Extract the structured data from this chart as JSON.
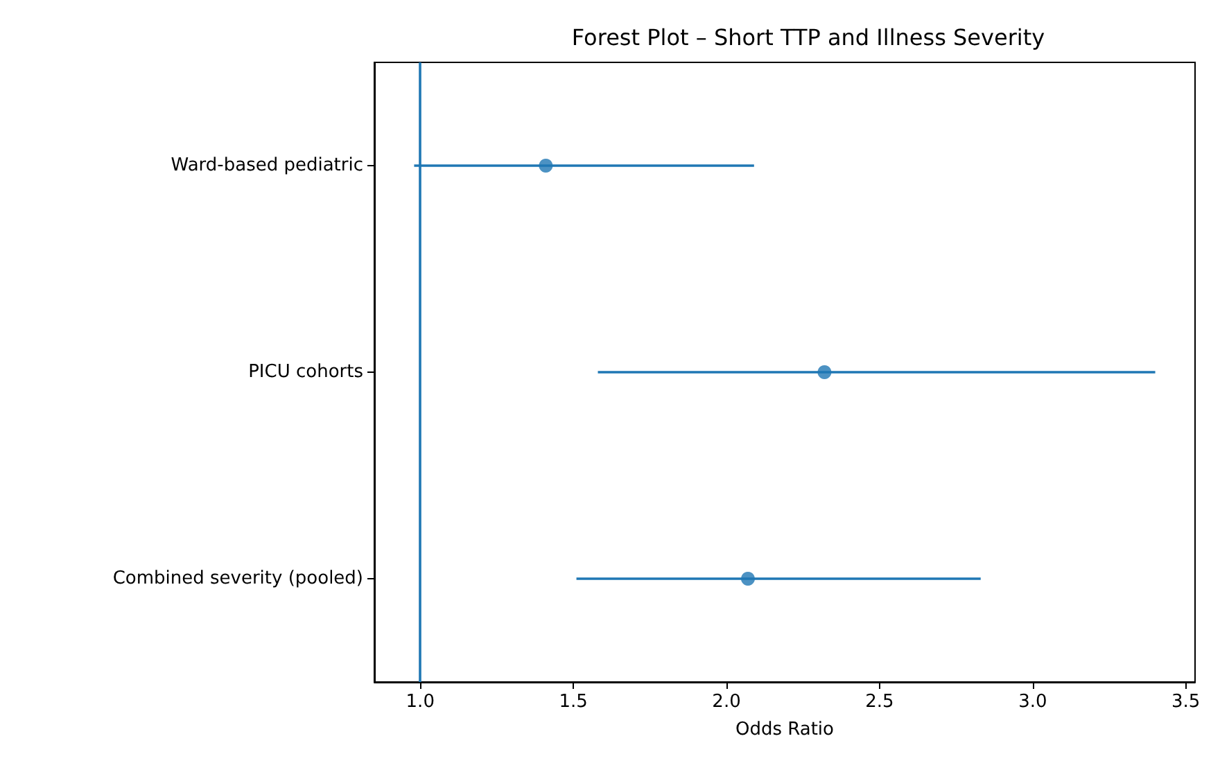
{
  "chart_data": {
    "type": "scatter",
    "title": "Forest Plot – Short TTP and Illness Severity",
    "xlabel": "Odds Ratio",
    "categories": [
      "Ward-based pediatric",
      "PICU cohorts",
      "Combined severity (pooled)"
    ],
    "orientation": "horizontal",
    "series": [
      {
        "color": "#1f77b4",
        "values": [
          1.41,
          2.32,
          2.07
        ],
        "errors": [
          [
            0.98,
            2.09
          ],
          [
            1.58,
            3.4
          ],
          [
            1.51,
            2.83
          ]
        ]
      }
    ],
    "marker": "circle",
    "xlim": [
      0.85,
      3.53
    ],
    "xticks": [
      {
        "value": 1.0,
        "label": "1.0"
      },
      {
        "value": 1.5,
        "label": "1.5"
      },
      {
        "value": 2.0,
        "label": "2.0"
      },
      {
        "value": 2.5,
        "label": "2.5"
      },
      {
        "value": 3.0,
        "label": "3.0"
      },
      {
        "value": 3.5,
        "label": "3.5"
      }
    ],
    "ref_lines": [
      {
        "axis": "x",
        "value": 1.0,
        "color": "#1f77b4"
      }
    ],
    "grid": false
  }
}
